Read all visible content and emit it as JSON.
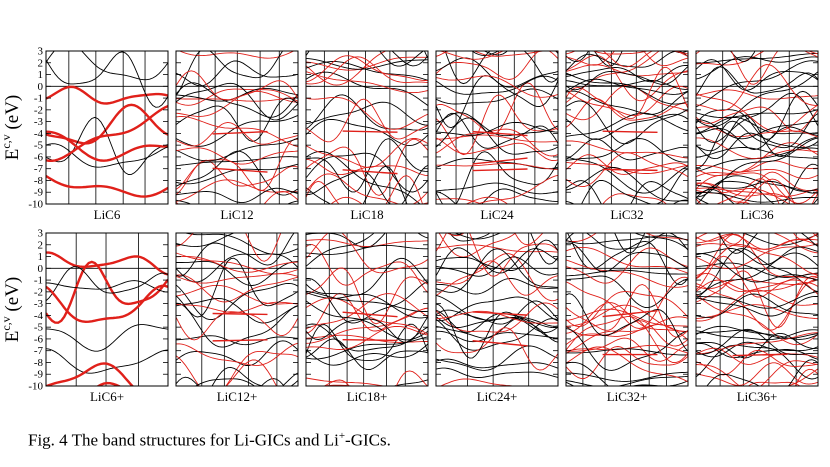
{
  "figure": {
    "y_axis_label_main": "E",
    "y_axis_label_sup": "c,v",
    "y_axis_label_unit": "(eV)",
    "y_ticks": [
      "3",
      "2",
      "1",
      "0",
      "-1",
      "-2",
      "-3",
      "-4",
      "-5",
      "-6",
      "-7",
      "-8",
      "-9",
      "-10"
    ],
    "rows": [
      {
        "panels": [
          "LiC6",
          "LiC12",
          "LiC18",
          "LiC24",
          "LiC32",
          "LiC36"
        ]
      },
      {
        "panels": [
          "LiC6+",
          "LiC12+",
          "LiC18+",
          "LiC24+",
          "LiC32+",
          "LiC36+"
        ]
      }
    ]
  },
  "caption": {
    "prefix": "Fig. 4   The band structures for Li-GICs and Li",
    "superscript": "+",
    "suffix": "-GICs."
  },
  "colors": {
    "band_black": "#000000",
    "band_red": "#e0201a",
    "axis": "#000000"
  }
}
